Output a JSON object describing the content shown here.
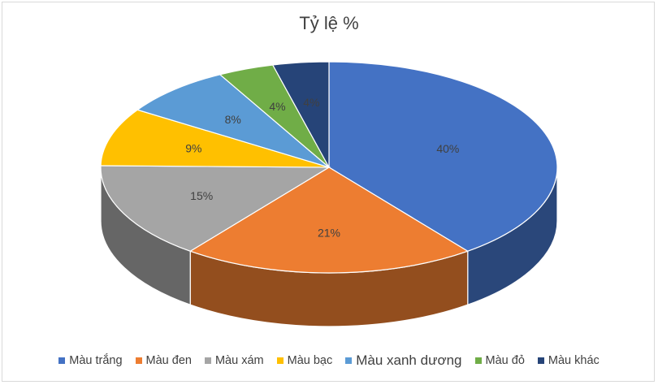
{
  "chart_data": {
    "type": "pie",
    "title": "Tỷ lệ %",
    "categories": [
      "Màu trắng",
      "Màu đen",
      "Màu xám",
      "Màu bạc",
      "Màu xanh dương",
      "Màu đỏ",
      "Màu khác"
    ],
    "values": [
      40,
      21,
      15,
      9,
      8,
      4,
      4
    ],
    "data_labels": [
      "40%",
      "21%",
      "15%",
      "9%",
      "8%",
      "4%",
      "4%"
    ],
    "colors": [
      "#4472c4",
      "#ed7d31",
      "#a5a5a5",
      "#ffc000",
      "#5b9bd5",
      "#70ad47",
      "#264478"
    ],
    "legend_position": "bottom",
    "style": "3d"
  }
}
